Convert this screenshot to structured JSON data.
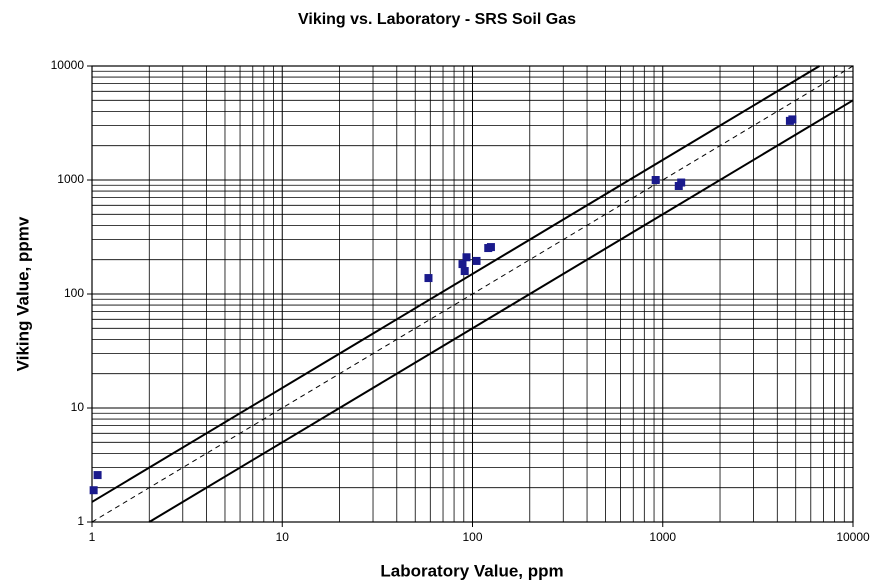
{
  "chart_data": {
    "type": "scatter",
    "title": "Viking vs. Laboratory - SRS Soil Gas",
    "x_label": "Laboratory Value, ppm",
    "y_label": "Viking Value, ppmv",
    "log_x": true,
    "log_y": true,
    "grid": true,
    "minor_grid": true,
    "xlim": [
      1,
      10000
    ],
    "ylim": [
      1,
      10000
    ],
    "xticks": [
      1,
      10,
      100,
      1000,
      10000
    ],
    "yticks": [
      1,
      10,
      100,
      1000,
      10000
    ],
    "series": [
      {
        "color": "#1a1a8c",
        "marker": "square",
        "x": [
          1.02,
          1.07,
          58.7,
          88.6,
          91,
          93,
          105,
          121,
          125,
          918,
          1214,
          1250,
          4660,
          4800
        ],
        "values": [
          1.9,
          2.58,
          138,
          183,
          159,
          210,
          195,
          253,
          258,
          1000,
          886,
          950,
          3300,
          3400
        ]
      }
    ],
    "lines": [
      {
        "color": "#000000",
        "dash": false,
        "x": [
          1,
          6666.67
        ],
        "values": [
          1.5,
          10000
        ]
      },
      {
        "color": "#000000",
        "dash": true,
        "x": [
          1,
          10000
        ],
        "values": [
          1,
          10000
        ]
      },
      {
        "color": "#000000",
        "dash": false,
        "x": [
          2,
          10000
        ],
        "values": [
          1,
          5000
        ]
      }
    ]
  }
}
